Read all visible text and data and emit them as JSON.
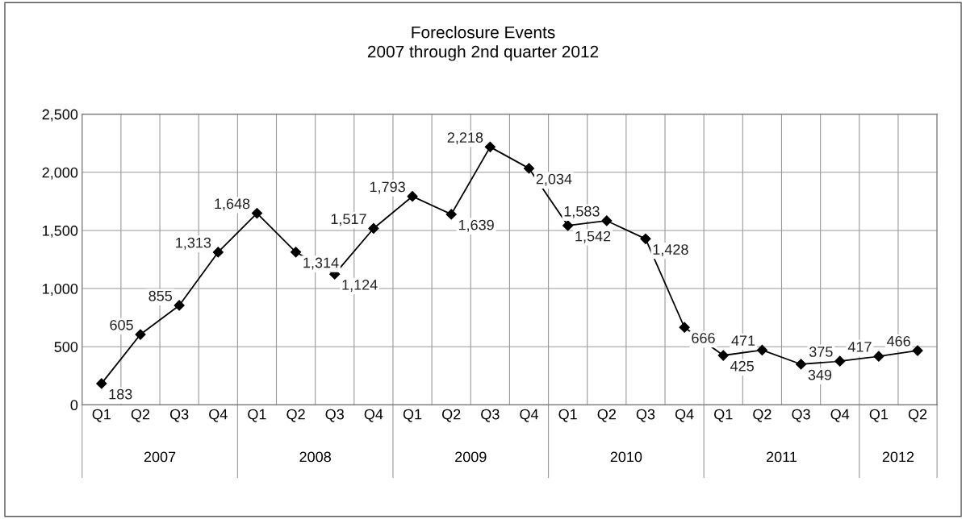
{
  "chart_data": {
    "type": "line",
    "title": "Foreclosure Events\n2007 through 2nd quarter 2012",
    "categories": [
      "Q1",
      "Q2",
      "Q3",
      "Q4",
      "Q1",
      "Q2",
      "Q3",
      "Q4",
      "Q1",
      "Q2",
      "Q3",
      "Q4",
      "Q1",
      "Q2",
      "Q3",
      "Q4",
      "Q1",
      "Q2",
      "Q3",
      "Q4",
      "Q1",
      "Q2"
    ],
    "series": [
      {
        "color": "#000000",
        "values": [
          183,
          605,
          855,
          1313,
          1648,
          1314,
          1124,
          1517,
          1793,
          1639,
          2218,
          2034,
          1542,
          1583,
          1428,
          666,
          425,
          471,
          349,
          375,
          417,
          466
        ],
        "value_labels": [
          "183",
          "605",
          "855",
          "1,313",
          "1,648",
          "1,314",
          "1,124",
          "1,517",
          "1,793",
          "1,639",
          "2,218",
          "2,034",
          "1,542",
          "1,583",
          "1,428",
          "666",
          "425",
          "471",
          "349",
          "375",
          "417",
          "466"
        ]
      }
    ],
    "annotations": [
      "2007",
      "2008",
      "2009",
      "2010",
      "2011",
      "2012"
    ],
    "ylim": [
      0,
      2500
    ],
    "yticks": [
      0,
      {
        "value": 500,
        "label": "500"
      },
      {
        "value": 1000,
        "label": "1,000"
      },
      {
        "value": 1500,
        "label": "1,500"
      },
      {
        "value": 2000,
        "label": "2,000"
      },
      {
        "value": 2500,
        "label": "2,500"
      }
    ],
    "grid": true,
    "marker": "diamond",
    "line_style": "solid",
    "legend": false
  }
}
